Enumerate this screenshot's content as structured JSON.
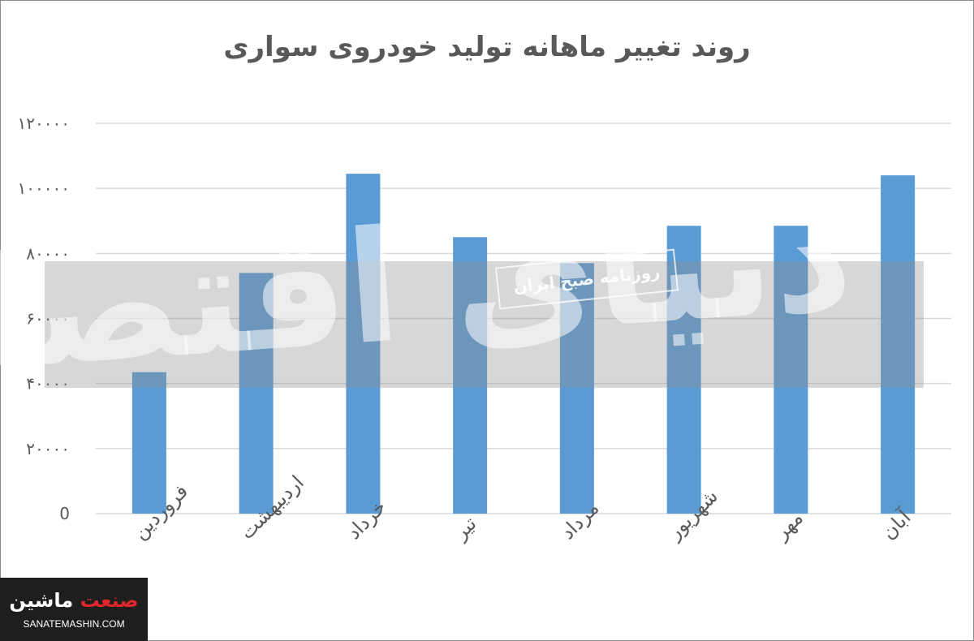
{
  "chart_data": {
    "type": "bar",
    "title": "روند تغییر ماهانه  تولید خودروی سواری",
    "categories": [
      "فروردین",
      "اردیبهشت",
      "خرداد",
      "تیر",
      "مرداد",
      "شهریور",
      "مهر",
      "آبان"
    ],
    "values": [
      43500,
      74000,
      104500,
      85000,
      77000,
      88500,
      88500,
      104000
    ],
    "y_tick_labels": [
      "0",
      "۲۰۰۰۰",
      "۴۰۰۰۰",
      "۶۰۰۰۰",
      "۸۰۰۰۰",
      "۱۰۰۰۰۰",
      "۱۲۰۰۰۰"
    ],
    "ylim": [
      0,
      120000
    ],
    "ytick_step": 20000,
    "grid": true,
    "bar_color": "#5b9bd5",
    "xlabel": "",
    "ylabel": ""
  },
  "watermark": {
    "main_text": "دنیای اقتصاد",
    "box_text": "روزنامه صبح ایران"
  },
  "logo": {
    "name_part1": "صنعت",
    "name_part2": "ماشین",
    "url": "SANATEMASHIN.COM",
    "accent_color": "#e0262b"
  }
}
